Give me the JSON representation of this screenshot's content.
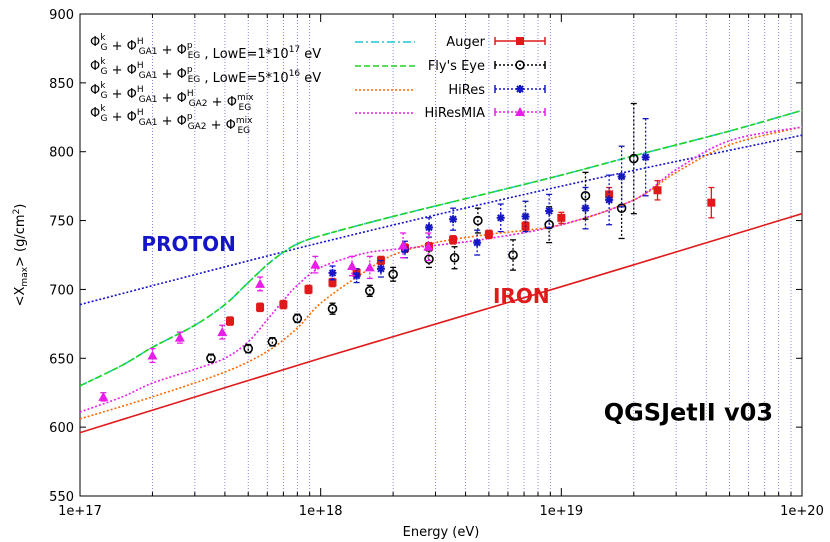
{
  "chart_data": {
    "type": "scatter",
    "title": "",
    "xlabel": "Energy (eV)",
    "ylabel": "<X_max> (g/cm^2)",
    "xscale": "log",
    "xlim": [
      1e+17,
      1e+20
    ],
    "ylim": [
      550,
      900
    ],
    "x_ticks": [
      {
        "value": 1e+17,
        "label": "1e+17"
      },
      {
        "value": 1e+18,
        "label": "1e+18"
      },
      {
        "value": 1e+19,
        "label": "1e+19"
      },
      {
        "value": 1e+20,
        "label": "1e+20"
      }
    ],
    "y_ticks": [
      550,
      600,
      650,
      700,
      750,
      800,
      850,
      900
    ],
    "y_tick_labels": [
      "550",
      "600",
      "650",
      "700",
      "750",
      "800",
      "850",
      "900"
    ],
    "vertical_gridlines": "dotted blue lines at 2..9 x each decade",
    "annotations": [
      {
        "text": "PROTON",
        "color": "#1515c8",
        "x": 1.8e+17,
        "y": 728
      },
      {
        "text": "IRON",
        "color": "#e01a1a",
        "x": 5.2e+18,
        "y": 690
      },
      {
        "text": "QGSJetII v03",
        "color": "#000000",
        "x": 1.5e+19,
        "y": 605
      }
    ],
    "curves": [
      {
        "name": "proton",
        "legend": null,
        "color": "#1515c8",
        "dash": "dot",
        "x": [
          1e+17,
          1e+18,
          1e+19,
          1e+20
        ],
        "y": [
          689,
          734,
          775,
          812
        ]
      },
      {
        "name": "iron",
        "legend": null,
        "color": "#e01a1a",
        "dash": "solid",
        "x": [
          1e+17,
          1e+18,
          1e+19,
          1e+20
        ],
        "y": [
          596,
          650,
          702,
          755
        ]
      },
      {
        "name": "lowE1e17",
        "legend": "Φ_G^k + Φ_GA1^H + Φ_EG^p , LowE=1*10^17 eV",
        "color": "#19c8d2",
        "dash": "dashdot",
        "x": [
          1e+17,
          1.5e+17,
          2e+17,
          3e+17,
          4e+17,
          5e+17,
          6e+17,
          7e+17,
          8e+17,
          1e+18,
          2e+18,
          5e+18,
          1e+19,
          2e+19,
          5e+19,
          1e+20
        ],
        "y": [
          630,
          645,
          658,
          674,
          689,
          705,
          718,
          727,
          733,
          739,
          753,
          770,
          783,
          797,
          815,
          830
        ]
      },
      {
        "name": "lowE5e16",
        "legend": "Φ_G^k + Φ_GA1^H + Φ_EG^p , LowE=5*10^16 eV",
        "color": "#21d421",
        "dash": "dash",
        "x": [
          1e+17,
          1.5e+17,
          2e+17,
          3e+17,
          4e+17,
          5e+17,
          6e+17,
          7e+17,
          8e+17,
          1e+18,
          2e+18,
          5e+18,
          1e+19,
          2e+19,
          5e+19,
          1e+20
        ],
        "y": [
          630,
          645,
          658,
          674,
          689,
          705,
          718,
          727,
          733,
          739,
          753,
          770,
          783,
          797,
          815,
          830
        ]
      },
      {
        "name": "ga2_eg_h",
        "legend": "Φ_G^k + Φ_GA1^H + Φ_GA2^H + Φ_EG^mix",
        "color": "#ff6a00",
        "dash": "dot",
        "x": [
          1e+17,
          2e+17,
          4e+17,
          6e+17,
          8e+17,
          1e+18,
          1.5e+18,
          2e+18,
          3e+18,
          5e+18,
          1e+19,
          2e+19,
          3e+19,
          5e+19,
          1e+20
        ],
        "y": [
          606,
          622,
          640,
          655,
          672,
          690,
          712,
          725,
          734,
          740,
          747,
          765,
          785,
          805,
          818
        ]
      },
      {
        "name": "hiresmia_ga2",
        "legend": "Φ_G^k + Φ_GA1^H + Φ_GA2^p + Φ_EG^mix",
        "color": "#e81ee8",
        "dash": "dot",
        "x": [
          1e+17,
          1.5e+17,
          2e+17,
          3e+17,
          4e+17,
          5e+17,
          6e+17,
          7e+17,
          8e+17,
          1e+18,
          1.5e+18,
          2e+18,
          3e+18,
          5e+18,
          1e+19,
          2e+19,
          3e+19,
          5e+19,
          1e+20
        ],
        "y": [
          611,
          622,
          632,
          642,
          650,
          662,
          678,
          692,
          703,
          716,
          726,
          729,
          732,
          737,
          747,
          765,
          787,
          808,
          818
        ]
      }
    ],
    "series": [
      {
        "name": "Auger",
        "color": "#e01a1a",
        "marker": "square",
        "points": [
          {
            "x": 4.2e+17,
            "y": 677,
            "err": 3
          },
          {
            "x": 5.6e+17,
            "y": 687,
            "err": 3
          },
          {
            "x": 7e+17,
            "y": 689,
            "err": 3
          },
          {
            "x": 8.9e+17,
            "y": 700,
            "err": 3
          },
          {
            "x": 1.12e+18,
            "y": 705,
            "err": 3
          },
          {
            "x": 1.41e+18,
            "y": 712,
            "err": 3
          },
          {
            "x": 1.78e+18,
            "y": 721,
            "err": 3
          },
          {
            "x": 2.24e+18,
            "y": 730,
            "err": 3
          },
          {
            "x": 2.82e+18,
            "y": 731,
            "err": 3
          },
          {
            "x": 3.55e+18,
            "y": 736,
            "err": 3
          },
          {
            "x": 5e+18,
            "y": 740,
            "err": 3
          },
          {
            "x": 7.1e+18,
            "y": 746,
            "err": 3
          },
          {
            "x": 1e+19,
            "y": 752,
            "err": 4
          },
          {
            "x": 1.58e+19,
            "y": 769,
            "err": 5
          },
          {
            "x": 2.51e+19,
            "y": 772,
            "err": 7
          },
          {
            "x": 4.2e+19,
            "y": 763,
            "err": 11
          }
        ]
      },
      {
        "name": "Fly's Eye",
        "color": "#000000",
        "marker": "circle",
        "points": [
          {
            "x": 3.5e+17,
            "y": 650,
            "err": 3
          },
          {
            "x": 5e+17,
            "y": 657,
            "err": 3
          },
          {
            "x": 6.3e+17,
            "y": 662,
            "err": 3
          },
          {
            "x": 8e+17,
            "y": 679,
            "err": 3
          },
          {
            "x": 1.12e+18,
            "y": 686,
            "err": 4
          },
          {
            "x": 1.6e+18,
            "y": 699,
            "err": 4
          },
          {
            "x": 2e+18,
            "y": 711,
            "err": 5
          },
          {
            "x": 2.82e+18,
            "y": 722,
            "err": 6
          },
          {
            "x": 3.6e+18,
            "y": 723,
            "err": 8
          },
          {
            "x": 4.5e+18,
            "y": 750,
            "err": 9
          },
          {
            "x": 6.3e+18,
            "y": 725,
            "err": 11
          },
          {
            "x": 8.9e+18,
            "y": 747,
            "err": 13
          },
          {
            "x": 1.26e+19,
            "y": 768,
            "err": 17
          },
          {
            "x": 1.78e+19,
            "y": 759,
            "err": 22
          },
          {
            "x": 2e+19,
            "y": 795,
            "err": 40
          }
        ]
      },
      {
        "name": "HiRes",
        "color": "#1515c8",
        "marker": "star",
        "points": [
          {
            "x": 1.12e+18,
            "y": 712,
            "err": 5
          },
          {
            "x": 1.41e+18,
            "y": 710,
            "err": 5
          },
          {
            "x": 1.78e+18,
            "y": 715,
            "err": 6
          },
          {
            "x": 2.24e+18,
            "y": 729,
            "err": 6
          },
          {
            "x": 2.82e+18,
            "y": 745,
            "err": 7
          },
          {
            "x": 3.55e+18,
            "y": 751,
            "err": 8
          },
          {
            "x": 4.47e+18,
            "y": 734,
            "err": 9
          },
          {
            "x": 5.6e+18,
            "y": 752,
            "err": 10
          },
          {
            "x": 7.1e+18,
            "y": 753,
            "err": 11
          },
          {
            "x": 8.9e+18,
            "y": 757,
            "err": 12
          },
          {
            "x": 1.26e+19,
            "y": 759,
            "err": 15
          },
          {
            "x": 1.58e+19,
            "y": 765,
            "err": 18
          },
          {
            "x": 1.78e+19,
            "y": 782,
            "err": 22
          },
          {
            "x": 2.24e+19,
            "y": 796,
            "err": 28
          }
        ]
      },
      {
        "name": "HiResMIA",
        "color": "#e81ee8",
        "marker": "triangle",
        "points": [
          {
            "x": 1.25e+17,
            "y": 622,
            "err": 3
          },
          {
            "x": 2e+17,
            "y": 652,
            "err": 5
          },
          {
            "x": 2.6e+17,
            "y": 665,
            "err": 4
          },
          {
            "x": 3.9e+17,
            "y": 669,
            "err": 5
          },
          {
            "x": 5.6e+17,
            "y": 704,
            "err": 5
          },
          {
            "x": 9.5e+17,
            "y": 718,
            "err": 6
          },
          {
            "x": 1.35e+18,
            "y": 717,
            "err": 7
          },
          {
            "x": 1.6e+18,
            "y": 716,
            "err": 8
          },
          {
            "x": 2.2e+18,
            "y": 732,
            "err": 9
          },
          {
            "x": 2.8e+18,
            "y": 731,
            "err": 10
          }
        ]
      }
    ],
    "legend": {
      "placement": "top-left",
      "rows": [
        {
          "main": "Φ",
          "terms": [
            [
              "Φ",
              "k",
              "G"
            ],
            [
              "Φ",
              "H",
              "GA1"
            ],
            [
              "Φ",
              "p",
              "EG"
            ]
          ],
          "suffix": " , LowE=1*10",
          "sup": "17",
          "tail": " eV"
        },
        {
          "terms": [
            [
              "Φ",
              "k",
              "G"
            ],
            [
              "Φ",
              "H",
              "GA1"
            ],
            [
              "Φ",
              "p",
              "EG"
            ]
          ],
          "suffix": " , LowE=5*10",
          "sup": "16",
          "tail": " eV"
        },
        {
          "terms": [
            [
              "Φ",
              "k",
              "G"
            ],
            [
              "Φ",
              "H",
              "GA1"
            ],
            [
              "Φ",
              "H",
              "GA2"
            ],
            [
              "Φ",
              "mix",
              "EG"
            ]
          ],
          "suffix": "",
          "sup": "",
          "tail": ""
        },
        {
          "terms": [
            [
              "Φ",
              "k",
              "G"
            ],
            [
              "Φ",
              "H",
              "GA1"
            ],
            [
              "Φ",
              "p",
              "GA2"
            ],
            [
              "Φ",
              "mix",
              "EG"
            ]
          ],
          "suffix": "",
          "sup": "",
          "tail": ""
        }
      ],
      "data_entries": [
        "Auger",
        "Fly's Eye",
        "HiRes",
        "HiResMIA"
      ]
    }
  }
}
